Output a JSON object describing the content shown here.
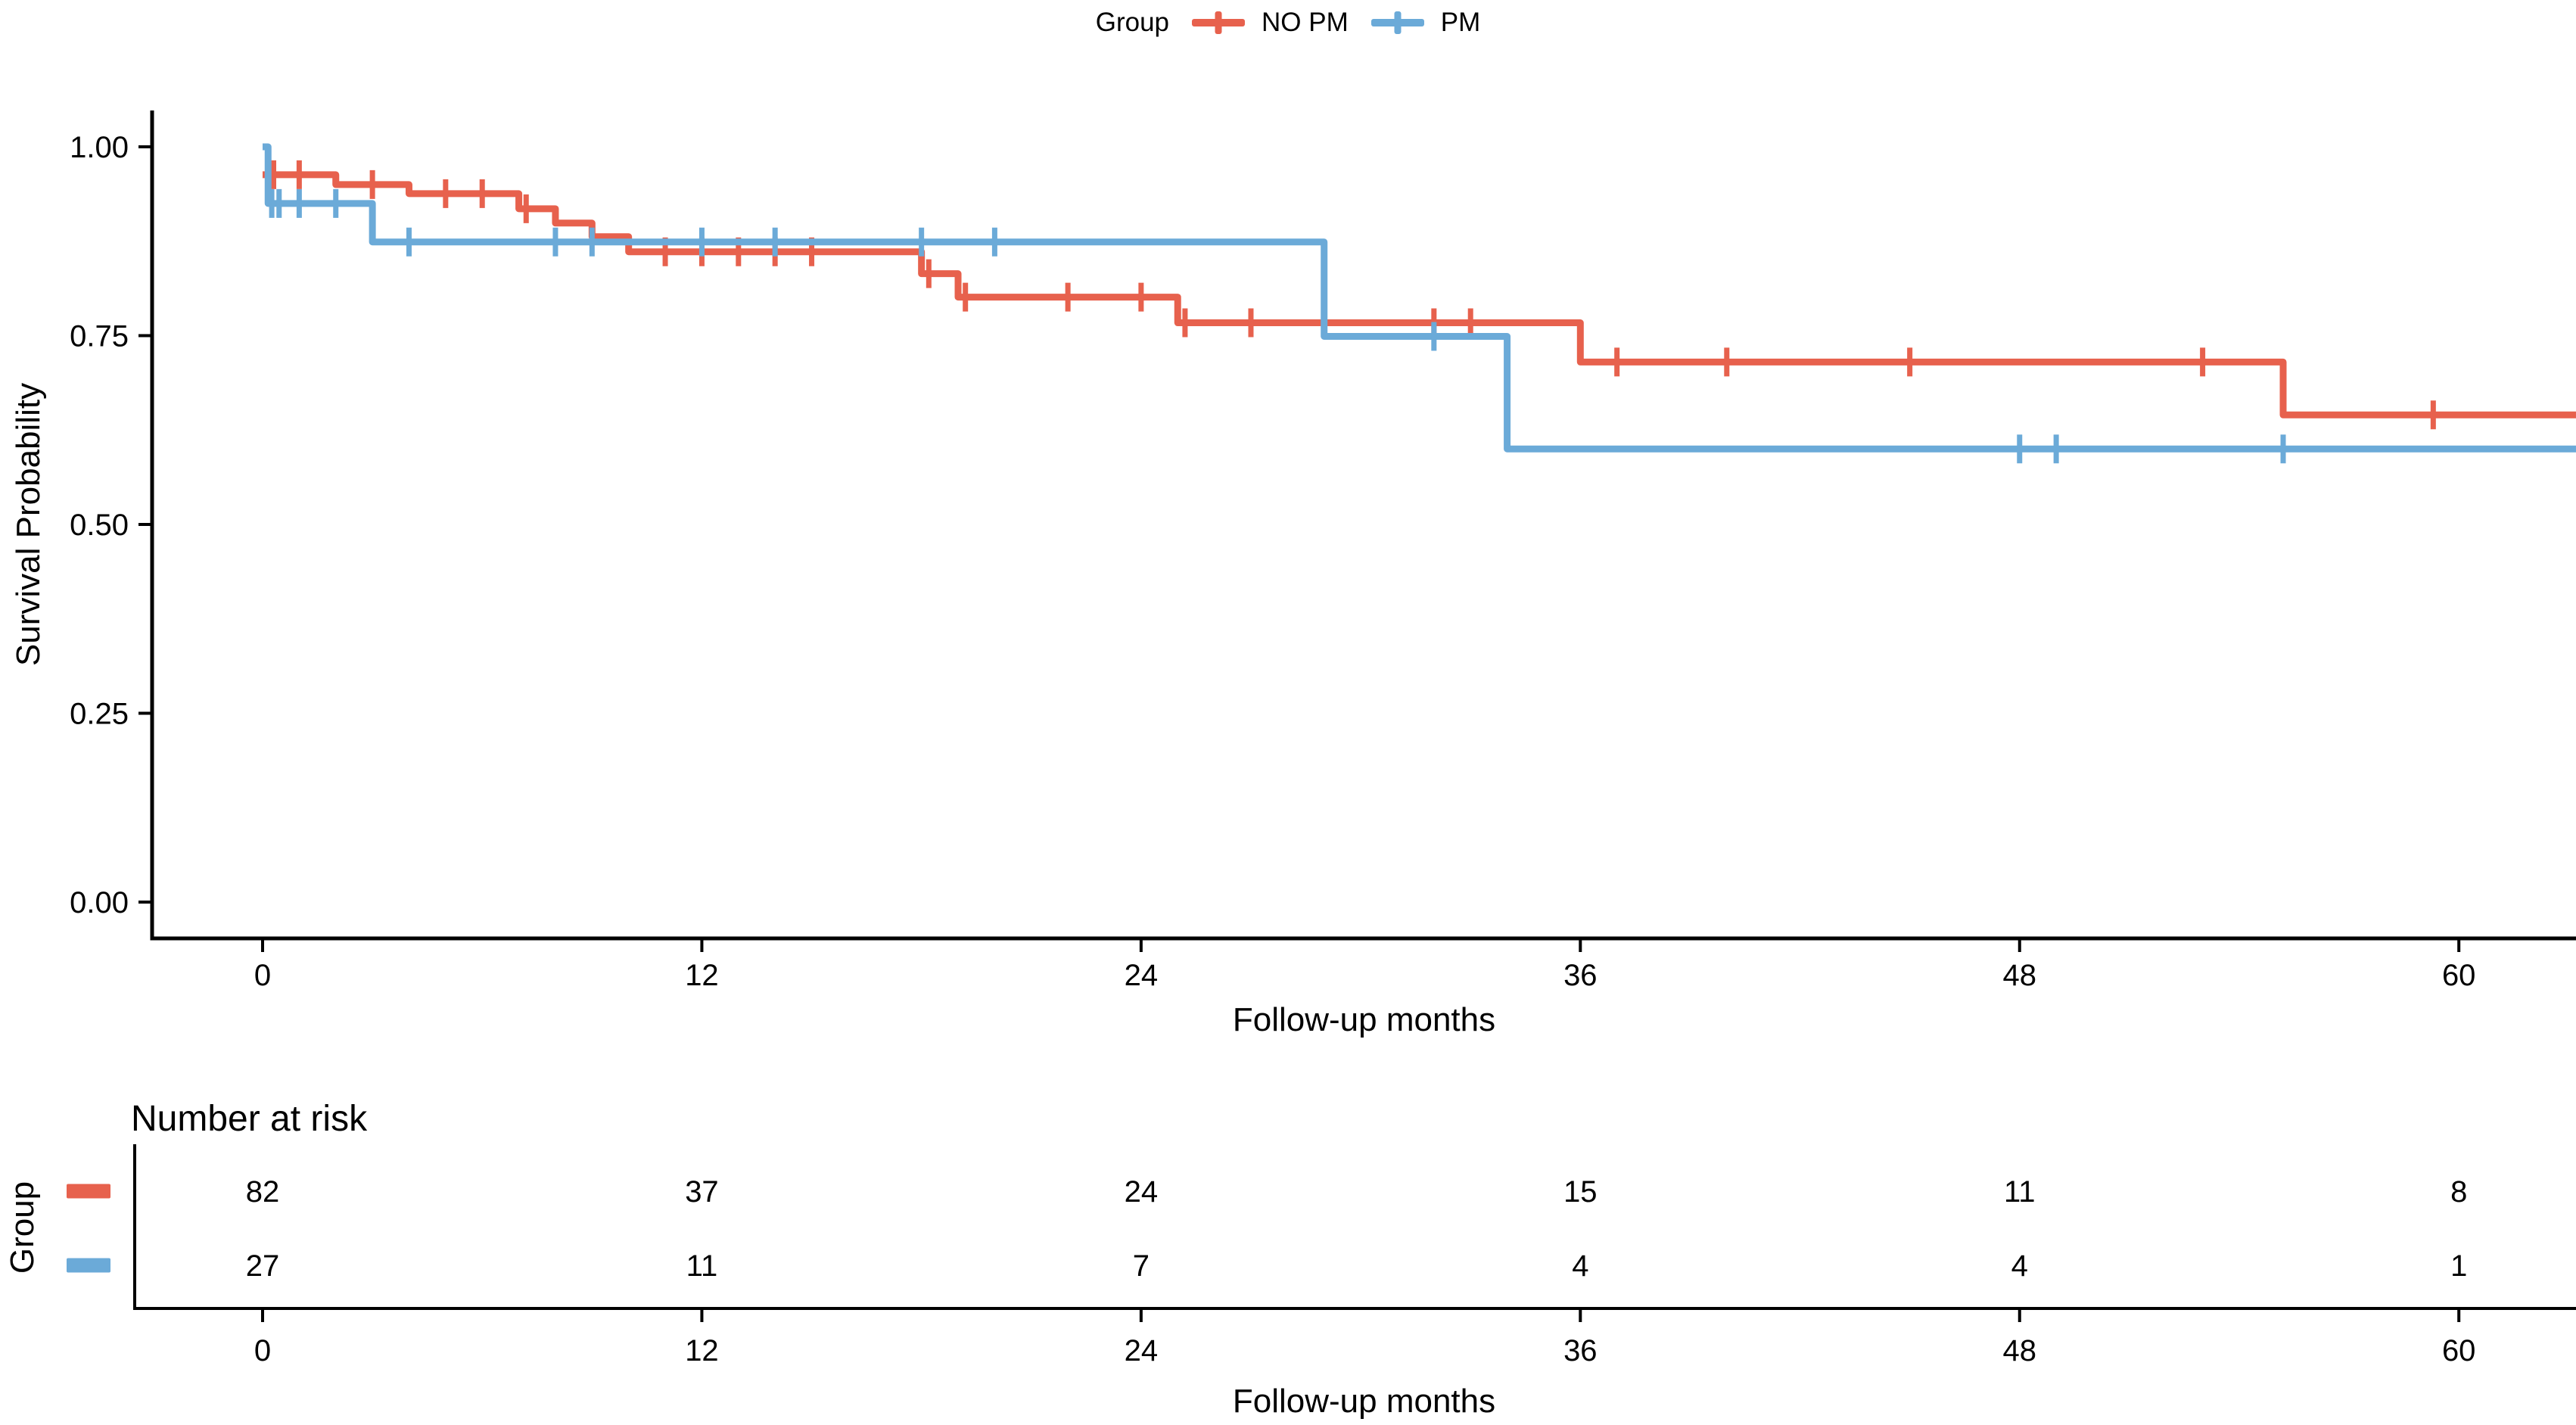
{
  "legend": {
    "title": "Group",
    "items": [
      {
        "label": "NO PM",
        "color": "#E7614D"
      },
      {
        "label": "PM",
        "color": "#6BAAD8"
      }
    ]
  },
  "axes": {
    "ylabel": "Survival Probability",
    "xlabel": "Follow-up months",
    "ytick_labels": [
      "1.00",
      "0.75",
      "0.50",
      "0.25",
      "0.00"
    ],
    "ytick_values": [
      1.0,
      0.75,
      0.5,
      0.25,
      0.0
    ],
    "xtick_labels": [
      "0",
      "12",
      "24",
      "36",
      "48",
      "60"
    ],
    "xtick_values": [
      0,
      12,
      24,
      36,
      48,
      60
    ]
  },
  "risk_table": {
    "title": "Number at risk",
    "axis_label": "Group",
    "xlabel": "Follow-up months",
    "columns": [
      0,
      12,
      24,
      36,
      48,
      60
    ],
    "rows": [
      {
        "group": "NO PM",
        "color": "#E7614D",
        "values": [
          "82",
          "37",
          "24",
          "15",
          "11",
          "8"
        ]
      },
      {
        "group": "PM",
        "color": "#6BAAD8",
        "values": [
          "27",
          "11",
          "7",
          "4",
          "4",
          "1"
        ]
      }
    ]
  },
  "chart_data": {
    "type": "line",
    "subtype": "kaplan-meier-step-curves",
    "title": "",
    "xlabel": "Follow-up months",
    "ylabel": "Survival Probability",
    "xlim": [
      -3,
      63.2
    ],
    "ylim": [
      0,
      1.05
    ],
    "x_end": 63.2,
    "grid": "off",
    "legend_position": "top",
    "series": [
      {
        "name": "NO PM",
        "color": "#E7614D",
        "steps": [
          [
            0,
            0.963
          ],
          [
            2,
            0.95
          ],
          [
            4,
            0.938
          ],
          [
            7,
            0.918
          ],
          [
            8,
            0.899
          ],
          [
            9,
            0.881
          ],
          [
            10,
            0.861
          ],
          [
            18,
            0.832
          ],
          [
            19,
            0.801
          ],
          [
            25,
            0.767
          ],
          [
            36,
            0.715
          ],
          [
            55.2,
            0.645
          ]
        ],
        "censor_times": [
          0.3,
          1,
          3,
          5,
          6,
          7.2,
          11,
          12,
          13,
          14,
          15,
          18.2,
          19.2,
          22,
          24,
          25.2,
          27,
          29,
          32,
          33,
          37,
          40,
          45,
          53,
          59.3
        ]
      },
      {
        "name": "PM",
        "color": "#6BAAD8",
        "steps": [
          [
            0,
            1.0
          ],
          [
            0.15,
            0.925
          ],
          [
            3,
            0.874
          ],
          [
            29,
            0.749
          ],
          [
            34,
            0.6
          ]
        ],
        "censor_times": [
          0.25,
          0.45,
          1,
          2,
          4,
          8,
          9,
          12,
          14,
          18,
          20,
          32,
          48,
          49,
          55.2
        ]
      }
    ]
  }
}
